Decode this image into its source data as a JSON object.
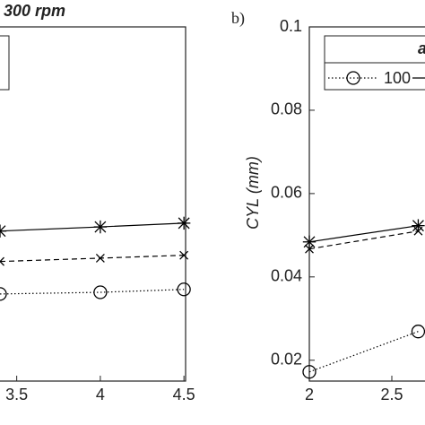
{
  "chart_data": [
    {
      "type": "line",
      "title": "300 rpm",
      "x": [
        3.4,
        4,
        4.5
      ],
      "xlim": [
        3.4,
        4.51
      ],
      "xticks": [
        3.5,
        4,
        4.5
      ],
      "ylim": [
        0.015,
        0.1
      ],
      "series": [
        {
          "color": "#000000",
          "dash": "solid",
          "marker": "asterisk",
          "values": [
            0.051,
            0.052,
            0.0529
          ]
        },
        {
          "color": "#000000",
          "dash": "dashed",
          "marker": "x",
          "values": [
            0.0437,
            0.0445,
            0.0452
          ]
        },
        {
          "color": "#000000",
          "dash": "dotted",
          "marker": "circle",
          "values": [
            0.0359,
            0.0363,
            0.037
          ]
        }
      ]
    },
    {
      "type": "line",
      "annotation": "b)",
      "ylabel": "CYL (mm)",
      "legend_title": "a",
      "x": [
        2,
        2.66
      ],
      "xlim": [
        2,
        2.75
      ],
      "xticks": [
        2,
        2.5
      ],
      "ylim": [
        0.015,
        0.1
      ],
      "yticks": [
        0.02,
        0.04,
        0.06,
        0.08,
        0.1
      ],
      "series": [
        {
          "name": "100",
          "color": "#000000",
          "dash": "dotted",
          "marker": "circle",
          "values": [
            0.0172,
            0.0269
          ]
        },
        {
          "color": "#000000",
          "dash": "solid",
          "marker": "asterisk",
          "values": [
            0.0484,
            0.0523
          ]
        },
        {
          "color": "#000000",
          "dash": "dashed",
          "marker": "x",
          "values": [
            0.0467,
            0.051
          ]
        }
      ]
    }
  ]
}
